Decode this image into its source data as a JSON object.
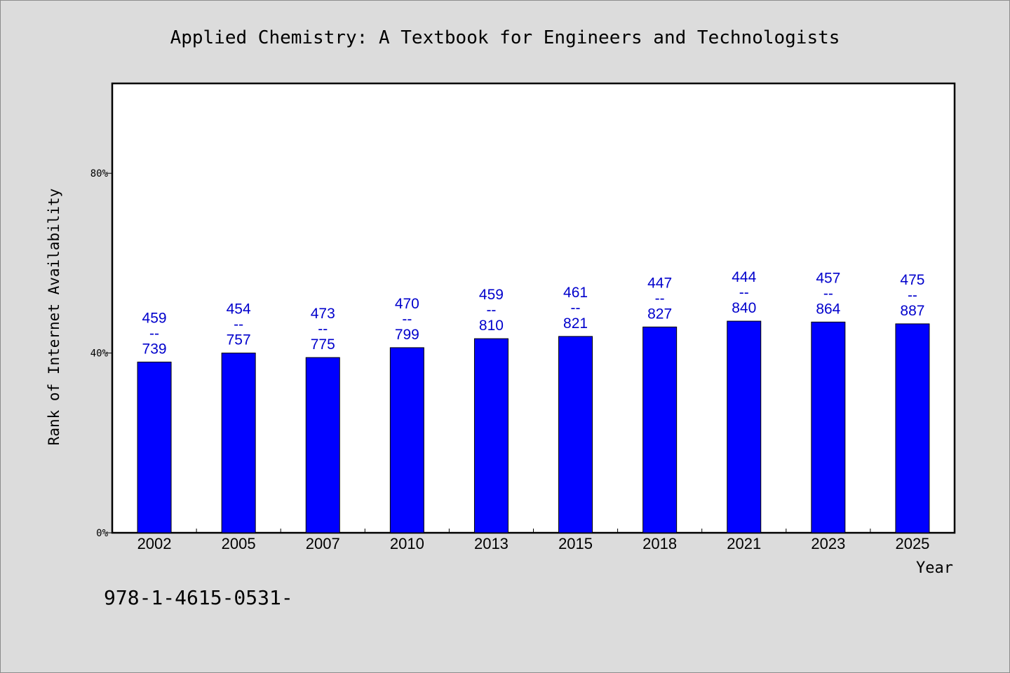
{
  "chart_data": {
    "type": "bar",
    "title": "Applied Chemistry: A Textbook for Engineers and Technologists",
    "xlabel": "Year",
    "ylabel": "Rank of Internet Availability",
    "categories": [
      "2002",
      "2005",
      "2007",
      "2010",
      "2013",
      "2015",
      "2018",
      "2021",
      "2023",
      "2025"
    ],
    "values": [
      38,
      40,
      39,
      41.2,
      43.2,
      43.7,
      45.8,
      47.1,
      46.9,
      46.5
    ],
    "data_labels": [
      [
        "459",
        "--",
        "739"
      ],
      [
        "454",
        "--",
        "757"
      ],
      [
        "473",
        "--",
        "775"
      ],
      [
        "470",
        "--",
        "799"
      ],
      [
        "459",
        "--",
        "810"
      ],
      [
        "461",
        "--",
        "821"
      ],
      [
        "447",
        "--",
        "827"
      ],
      [
        "444",
        "--",
        "840"
      ],
      [
        "457",
        "--",
        "864"
      ],
      [
        "475",
        "--",
        "887"
      ]
    ],
    "ylim": [
      0,
      100
    ],
    "yticks": [
      0,
      40,
      80
    ],
    "ytick_labels": [
      "0%",
      "40%",
      "80%"
    ],
    "grid": false,
    "legend": "none",
    "bar_color": "#0000ff",
    "label_color": "#0000cc"
  },
  "footer": {
    "isbn": "978-1-4615-0531-"
  }
}
